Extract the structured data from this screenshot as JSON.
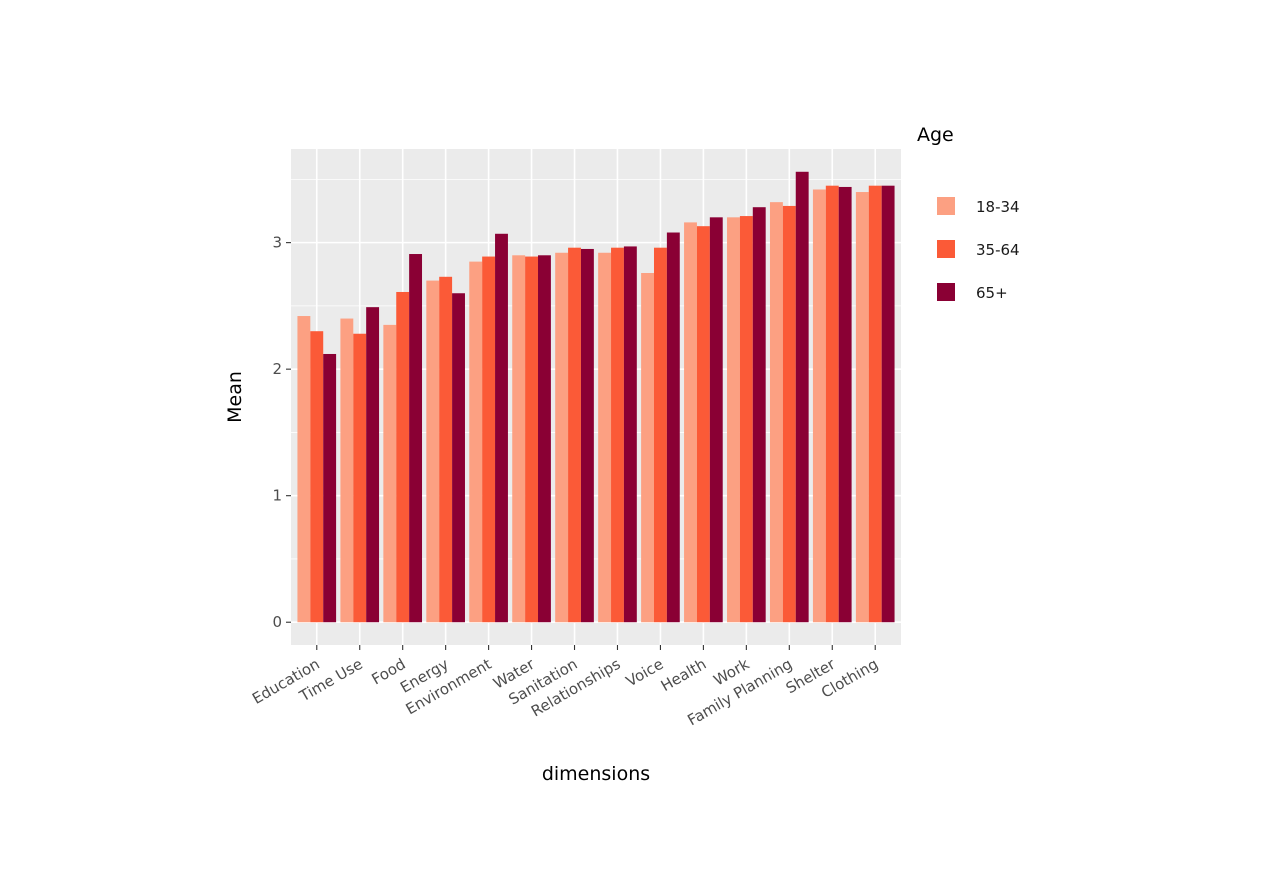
{
  "chart_data": {
    "type": "bar",
    "title": "",
    "xlabel": "dimensions",
    "ylabel": "Mean",
    "ylim": [
      -0.18,
      3.74
    ],
    "yticks": [
      0,
      1,
      2,
      3
    ],
    "grid": true,
    "legend_title": "Age",
    "legend_position": "right",
    "categories": [
      "Education",
      "Time Use",
      "Food",
      "Energy",
      "Environment",
      "Water",
      "Sanitation",
      "Relationships",
      "Voice",
      "Health",
      "Work",
      "Family Planning",
      "Shelter",
      "Clothing"
    ],
    "series": [
      {
        "name": "18-34",
        "color": "#FCA082",
        "values": [
          2.42,
          2.4,
          2.35,
          2.7,
          2.85,
          2.9,
          2.92,
          2.92,
          2.76,
          3.16,
          3.2,
          3.32,
          3.42,
          3.4
        ]
      },
      {
        "name": "35-64",
        "color": "#FB5A37",
        "values": [
          2.3,
          2.28,
          2.61,
          2.73,
          2.89,
          2.89,
          2.96,
          2.96,
          2.96,
          3.13,
          3.21,
          3.29,
          3.45,
          3.45
        ]
      },
      {
        "name": "65+",
        "color": "#8A0034",
        "values": [
          2.12,
          2.49,
          2.91,
          2.6,
          3.07,
          2.9,
          2.95,
          2.97,
          3.08,
          3.2,
          3.28,
          3.56,
          3.44,
          3.45
        ]
      }
    ]
  }
}
